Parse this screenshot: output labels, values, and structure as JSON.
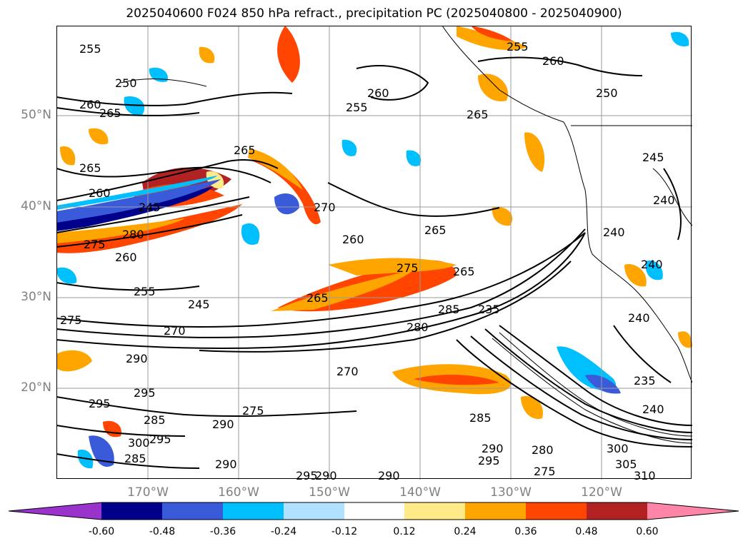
{
  "title": "2025040600 F024 850 hPa refract., precipitation PC (2025040800 - 2025040900)",
  "lat_labels": [
    "50°N",
    "40°N",
    "30°N",
    "20°N"
  ],
  "lon_labels": [
    "170°W",
    "160°W",
    "150°W",
    "140°W",
    "130°W",
    "120°W"
  ],
  "contour_labels": [
    "255",
    "250",
    "260",
    "265",
    "265",
    "260",
    "245",
    "280",
    "275",
    "260",
    "255",
    "245",
    "270",
    "275",
    "290",
    "295",
    "295",
    "285",
    "300",
    "295",
    "285",
    "290",
    "290",
    "275",
    "270",
    "265",
    "275",
    "265",
    "280",
    "285",
    "235",
    "265",
    "260",
    "270",
    "260",
    "255",
    "265",
    "260",
    "265",
    "255",
    "245",
    "250",
    "240",
    "240",
    "240",
    "240",
    "235",
    "240",
    "290",
    "295",
    "280",
    "275",
    "300",
    "305",
    "310",
    "285",
    "295",
    "290",
    "290"
  ],
  "colorbar": {
    "ticks": [
      "-0.60",
      "-0.48",
      "-0.36",
      "-0.24",
      "-0.12",
      "0.12",
      "0.24",
      "0.36",
      "0.48",
      "0.60"
    ],
    "colors": [
      "#9933cc",
      "#00008b",
      "#3a5bd9",
      "#00bfff",
      "#b0e2ff",
      "#ffffff",
      "#ffea8a",
      "#ffa500",
      "#ff4500",
      "#b22222",
      "#ff85a8"
    ]
  }
}
